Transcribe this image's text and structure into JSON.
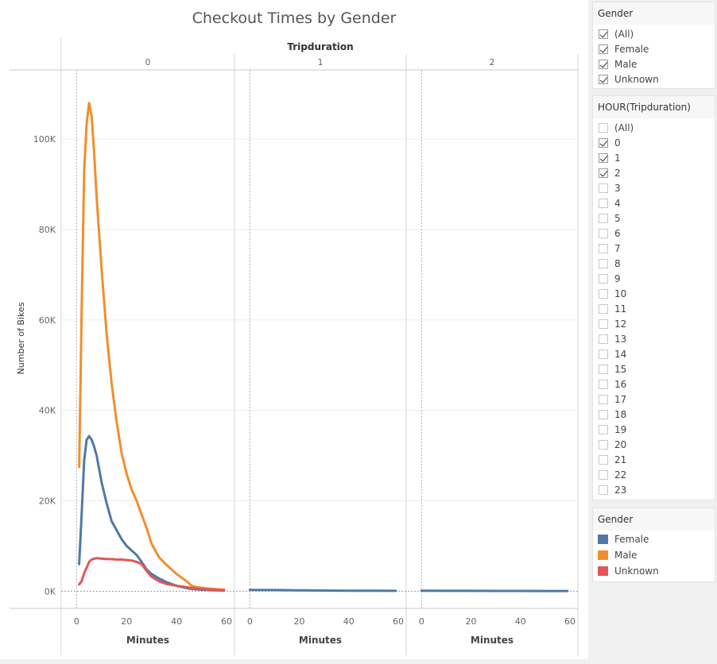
{
  "title": "Checkout Times by Gender",
  "column_header": "Tripduration",
  "gender_filter": {
    "title": "Gender",
    "items": [
      {
        "label": "(All)",
        "checked": true
      },
      {
        "label": "Female",
        "checked": true
      },
      {
        "label": "Male",
        "checked": true
      },
      {
        "label": "Unknown",
        "checked": true
      }
    ]
  },
  "hour_filter": {
    "title": "HOUR(Tripduration)",
    "items": [
      {
        "label": "(All)",
        "checked": false
      },
      {
        "label": "0",
        "checked": true
      },
      {
        "label": "1",
        "checked": true
      },
      {
        "label": "2",
        "checked": true
      },
      {
        "label": "3",
        "checked": false
      },
      {
        "label": "4",
        "checked": false
      },
      {
        "label": "5",
        "checked": false
      },
      {
        "label": "6",
        "checked": false
      },
      {
        "label": "7",
        "checked": false
      },
      {
        "label": "8",
        "checked": false
      },
      {
        "label": "9",
        "checked": false
      },
      {
        "label": "10",
        "checked": false
      },
      {
        "label": "11",
        "checked": false
      },
      {
        "label": "12",
        "checked": false
      },
      {
        "label": "13",
        "checked": false
      },
      {
        "label": "14",
        "checked": false
      },
      {
        "label": "15",
        "checked": false
      },
      {
        "label": "16",
        "checked": false
      },
      {
        "label": "17",
        "checked": false
      },
      {
        "label": "18",
        "checked": false
      },
      {
        "label": "19",
        "checked": false
      },
      {
        "label": "20",
        "checked": false
      },
      {
        "label": "21",
        "checked": false
      },
      {
        "label": "22",
        "checked": false
      },
      {
        "label": "23",
        "checked": false
      }
    ]
  },
  "color_legend": {
    "title": "Gender",
    "items": [
      {
        "label": "Female",
        "color": "#4e79a7"
      },
      {
        "label": "Male",
        "color": "#f28e2b"
      },
      {
        "label": "Unknown",
        "color": "#e15759"
      }
    ]
  },
  "chart_data": {
    "type": "line",
    "title": "Checkout Times by Gender",
    "ylabel": "Number of Bikes",
    "ylim": [
      0,
      110000
    ],
    "yticks": [
      0,
      20000,
      40000,
      60000,
      80000,
      100000
    ],
    "ytick_labels": [
      "0K",
      "20K",
      "40K",
      "60K",
      "80K",
      "100K"
    ],
    "xlim": [
      -3,
      60
    ],
    "xticks": [
      0,
      20,
      40,
      60
    ],
    "xtick_labels": [
      "0",
      "20",
      "40",
      "60"
    ],
    "legend_position": "right",
    "grid": true,
    "panels": [
      {
        "label": "0",
        "xlabel": "Minutes",
        "series": [
          {
            "name": "Male",
            "color": "#f28e2b",
            "x": [
              1,
              2,
              3,
              4,
              5,
              6,
              7,
              8,
              10,
              12,
              14,
              16,
              18,
              20,
              22,
              24,
              26,
              28,
              30,
              33,
              36,
              40,
              44,
              46,
              48,
              52,
              56,
              59
            ],
            "y": [
              27500,
              62000,
              93000,
              103500,
              108000,
              105000,
              97000,
              87000,
              71000,
              57000,
              46000,
              37500,
              30500,
              26000,
              22500,
              20000,
              17000,
              14000,
              10500,
              7500,
              5800,
              3800,
              2200,
              1200,
              900,
              650,
              450,
              350
            ]
          },
          {
            "name": "Female",
            "color": "#4e79a7",
            "x": [
              1,
              2,
              3,
              4,
              5,
              6,
              7,
              8,
              10,
              12,
              14,
              16,
              18,
              20,
              22,
              24,
              26,
              28,
              30,
              33,
              36,
              40,
              44,
              46,
              48,
              52,
              56,
              59
            ],
            "y": [
              6000,
              17000,
              29000,
              33500,
              34300,
              33500,
              32000,
              30000,
              24000,
              19500,
              15500,
              13500,
              11500,
              10000,
              9000,
              8000,
              6500,
              4800,
              3800,
              2800,
              2000,
              1200,
              700,
              500,
              400,
              300,
              200,
              150
            ]
          },
          {
            "name": "Unknown",
            "color": "#e15759",
            "x": [
              1,
              2,
              3,
              4,
              5,
              6,
              7,
              8,
              10,
              12,
              14,
              16,
              18,
              20,
              22,
              24,
              26,
              28,
              30,
              33,
              36,
              40,
              44,
              46,
              48,
              52,
              56,
              59
            ],
            "y": [
              1500,
              2200,
              4000,
              5200,
              6500,
              7000,
              7200,
              7300,
              7200,
              7100,
              7100,
              7000,
              7000,
              6900,
              6800,
              6500,
              6000,
              4500,
              3200,
              2200,
              1600,
              1200,
              900,
              700,
              600,
              400,
              300,
              200
            ]
          }
        ]
      },
      {
        "label": "1",
        "xlabel": "Minutes",
        "series": [
          {
            "name": "Female",
            "color": "#4e79a7",
            "x": [
              0,
              10,
              20,
              30,
              40,
              50,
              59
            ],
            "y": [
              300,
              250,
              200,
              150,
              120,
              100,
              80
            ]
          }
        ]
      },
      {
        "label": "2",
        "xlabel": "Minutes",
        "series": [
          {
            "name": "Female",
            "color": "#4e79a7",
            "x": [
              0,
              10,
              20,
              30,
              40,
              50,
              59
            ],
            "y": [
              100,
              90,
              80,
              70,
              60,
              50,
              40
            ]
          }
        ]
      }
    ]
  }
}
